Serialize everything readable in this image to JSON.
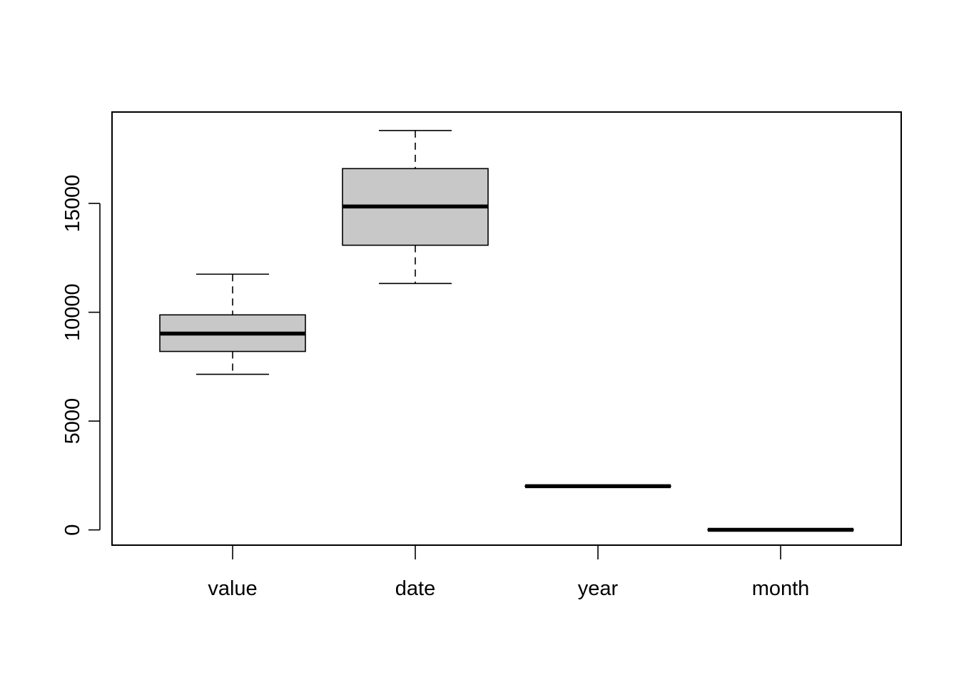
{
  "chart_data": {
    "type": "boxplot",
    "title": "",
    "xlabel": "",
    "ylabel": "",
    "ylim": [
      -700,
      19200
    ],
    "yticks": [
      0,
      5000,
      10000,
      15000
    ],
    "yticklabels": [
      "0",
      "5000",
      "10000",
      "15000"
    ],
    "categories": [
      "value",
      "date",
      "year",
      "month"
    ],
    "boxes": [
      {
        "name": "value",
        "whisker_low": 7150,
        "q1": 8200,
        "median": 9020,
        "q3": 9880,
        "whisker_high": 11750
      },
      {
        "name": "date",
        "whisker_low": 11320,
        "q1": 13080,
        "median": 14860,
        "q3": 16600,
        "whisker_high": 18350
      },
      {
        "name": "year",
        "whisker_low": 2005,
        "q1": 2008,
        "median": 2010,
        "q3": 2012,
        "whisker_high": 2015
      },
      {
        "name": "month",
        "whisker_low": 1,
        "q1": 3,
        "median": 6,
        "q3": 9,
        "whisker_high": 12
      }
    ],
    "box_fill": "#c8c8c8",
    "grid": false,
    "legend": "none"
  }
}
